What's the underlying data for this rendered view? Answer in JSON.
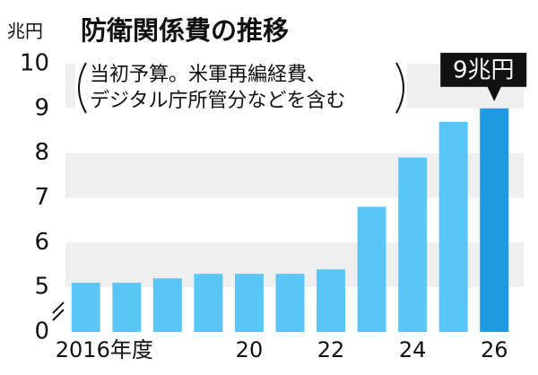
{
  "chart_data": {
    "type": "bar",
    "title": "防衛関係費の推移",
    "y_unit": "兆円",
    "annotations": [
      "当初予算。米軍再編経費、",
      "デジタル庁所管分などを含む"
    ],
    "callout": "9兆円",
    "categories": [
      "2016年度",
      null,
      null,
      null,
      "20",
      null,
      "22",
      null,
      "24",
      null,
      "26"
    ],
    "values": [
      5.1,
      5.1,
      5.2,
      5.3,
      5.3,
      5.3,
      5.4,
      6.8,
      7.9,
      8.7,
      9.0
    ],
    "colors": [
      "#5ac6f6",
      "#5ac6f6",
      "#5ac6f6",
      "#5ac6f6",
      "#5ac6f6",
      "#5ac6f6",
      "#5ac6f6",
      "#5ac6f6",
      "#5ac6f6",
      "#5ac6f6",
      "#1e9ae0"
    ],
    "ylim": [
      0,
      10
    ],
    "yticks": [
      0,
      5,
      6,
      7,
      8,
      9,
      10
    ],
    "broken_axis": true,
    "grid": "bands"
  }
}
